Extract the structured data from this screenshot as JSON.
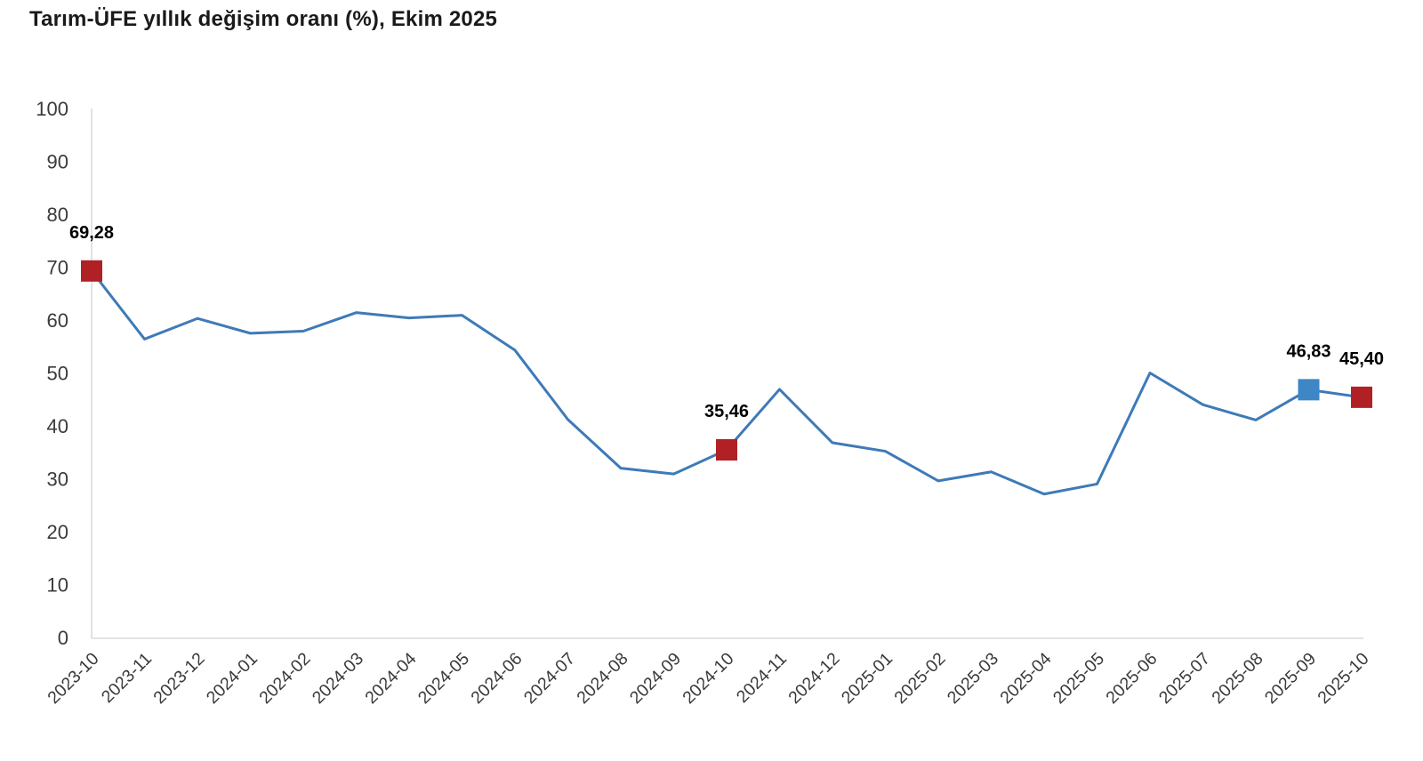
{
  "chart_data": {
    "type": "line",
    "title": "Tarım-ÜFE yıllık değişim oranı (%), Ekim 2025",
    "categories": [
      "2023-10",
      "2023-11",
      "2023-12",
      "2024-01",
      "2024-02",
      "2024-03",
      "2024-04",
      "2024-05",
      "2024-06",
      "2024-07",
      "2024-08",
      "2024-09",
      "2024-10",
      "2024-11",
      "2024-12",
      "2025-01",
      "2025-02",
      "2025-03",
      "2025-04",
      "2025-05",
      "2025-06",
      "2025-07",
      "2025-08",
      "2025-09",
      "2025-10"
    ],
    "values": [
      69.28,
      56.4,
      60.3,
      57.5,
      57.9,
      61.4,
      60.4,
      60.9,
      54.3,
      41.2,
      32.0,
      30.9,
      35.46,
      46.9,
      36.8,
      35.2,
      29.6,
      31.3,
      27.1,
      29.0,
      50.0,
      44.0,
      41.1,
      46.83,
      45.4
    ],
    "ylim": [
      0,
      100
    ],
    "ytick_step": 10,
    "ytick_labels": [
      "0",
      "10",
      "20",
      "30",
      "40",
      "50",
      "60",
      "70",
      "80",
      "90",
      "100"
    ],
    "grid": false,
    "legend": "none",
    "annotated_points": [
      {
        "category": "2023-10",
        "value": 69.28,
        "label": "69,28",
        "marker_color": "#b02025"
      },
      {
        "category": "2024-10",
        "value": 35.46,
        "label": "35,46",
        "marker_color": "#b02025"
      },
      {
        "category": "2025-09",
        "value": 46.83,
        "label": "46,83",
        "marker_color": "#3e86c6"
      },
      {
        "category": "2025-10",
        "value": 45.4,
        "label": "45,40",
        "marker_color": "#b02025"
      }
    ],
    "colors": {
      "line": "#3d7ab7",
      "axis": "#d9d9d9",
      "tick_text": "#3a3a3a",
      "title_text": "#1a1a1a",
      "value_label_text": "#000000"
    }
  }
}
